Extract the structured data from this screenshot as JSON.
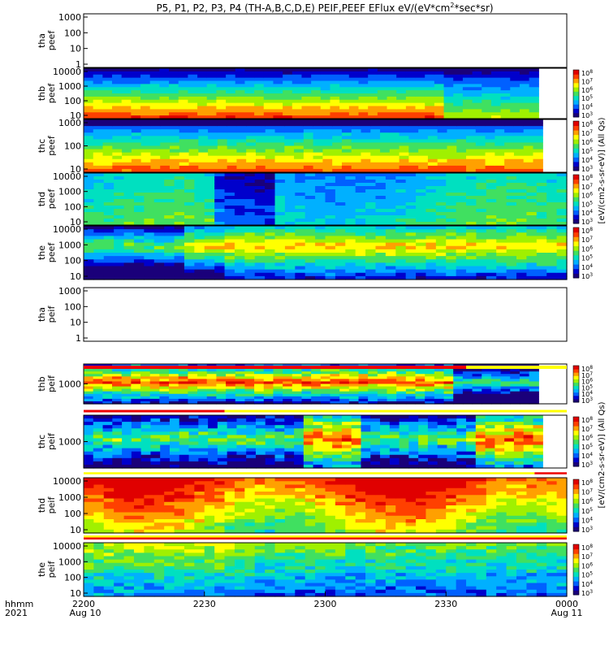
{
  "title": "P5, P1, P2, P3, P4 (TH-A,B,C,D,E) PEIF,PEEF EFlux eV/(eV*cm2*sec*sr)",
  "title_parts": {
    "prefix": "P5, P1, P2, P3, P4 (TH-A,B,C,D,E) PEIF,PEEF EFlux eV/(eV*cm",
    "sup": "2",
    "suffix": "*sec*sr)"
  },
  "footer": {
    "row1_label": "hhmm",
    "row2_label": "2021",
    "x_ticks": [
      "2200",
      "2230",
      "2300",
      "2330",
      "0000"
    ],
    "date_start": "Aug 10",
    "date_end": "Aug 11"
  },
  "colorbar": {
    "eflux_tick_exponents": [
      "3",
      "4",
      "5",
      "6",
      "7",
      "8"
    ],
    "electron_label": "[eV/(cm2-s-sr-eV)] (All Qs)",
    "ion_label": "[eV/(cm2-s-sr-eV)] (All Qs)"
  },
  "colors": {
    "spectrum": [
      "#1a007a",
      "#0000cc",
      "#0060ff",
      "#00b0ff",
      "#00e0c0",
      "#40e060",
      "#a0f000",
      "#ffff00",
      "#ffa000",
      "#ff4000",
      "#e00000"
    ],
    "flag_red": "#ee0000",
    "flag_yellow": "#ffff00"
  },
  "chart_data": {
    "type": "heatmap",
    "x_range": [
      "2021-08-10 22:00",
      "2021-08-11 00:00"
    ],
    "x_ticks": [
      "2200",
      "2230",
      "2300",
      "2330",
      "0000"
    ],
    "colorbar_range": [
      1000,
      100000000
    ],
    "panels": [
      {
        "id": "tha-peef",
        "label_top": "tha",
        "label_bottom": "peef",
        "y_ticks": [
          "1000",
          "100",
          "10",
          "1"
        ],
        "ylim": [
          1,
          20000
        ],
        "has_data": false,
        "flags": []
      },
      {
        "id": "thb-peef",
        "label_top": "thb",
        "label_bottom": "peef",
        "y_ticks": [
          "10000",
          "1000",
          "100",
          "10"
        ],
        "ylim": [
          5,
          25000
        ],
        "has_data": true,
        "data_end_min": 113,
        "flags": []
      },
      {
        "id": "thc-peef",
        "label_top": "thc",
        "label_bottom": "peef",
        "y_ticks": [
          "1000",
          "100",
          "10"
        ],
        "ylim": [
          5,
          6000
        ],
        "has_data": true,
        "data_end_min": 114,
        "flags": []
      },
      {
        "id": "thd-peef",
        "label_top": "thd",
        "label_bottom": "peef",
        "y_ticks": [
          "10000",
          "1000",
          "100",
          "10"
        ],
        "ylim": [
          5,
          25000
        ],
        "has_data": true,
        "data_end_min": 120,
        "flags": []
      },
      {
        "id": "the-peef",
        "label_top": "the",
        "label_bottom": "peef",
        "y_ticks": [
          "10000",
          "1000",
          "100",
          "10"
        ],
        "ylim": [
          5,
          25000
        ],
        "has_data": true,
        "data_end_min": 120,
        "flags": []
      },
      {
        "id": "tha-peif",
        "label_top": "tha",
        "label_bottom": "peif",
        "y_ticks": [
          "1000",
          "100",
          "10",
          "1"
        ],
        "ylim": [
          1,
          20000
        ],
        "has_data": false,
        "flags": []
      },
      {
        "id": "thb-peif",
        "label_top": "thb",
        "label_bottom": "peif",
        "y_ticks": [
          "1000"
        ],
        "ylim": [
          50,
          20000
        ],
        "has_data": true,
        "data_end_min": 113,
        "flags": [
          {
            "color": "red",
            "start_min": 0,
            "end_min": 95
          },
          {
            "color": "yellow",
            "start_min": 95,
            "end_min": 120
          }
        ]
      },
      {
        "id": "thc-peif",
        "label_top": "thc",
        "label_bottom": "peif",
        "y_ticks": [
          "1000"
        ],
        "ylim": [
          50,
          20000
        ],
        "has_data": true,
        "data_end_min": 114,
        "flags": [
          {
            "color": "red",
            "start_min": 0,
            "end_min": 35
          },
          {
            "color": "yellow",
            "start_min": 35,
            "end_min": 120
          }
        ]
      },
      {
        "id": "thd-peif",
        "label_top": "thd",
        "label_bottom": "peif",
        "y_ticks": [
          "10000",
          "1000",
          "100",
          "10"
        ],
        "ylim": [
          5,
          25000
        ],
        "has_data": true,
        "data_end_min": 120,
        "flags": [
          {
            "color": "yellow",
            "start_min": 0,
            "end_min": 112
          },
          {
            "color": "red",
            "start_min": 112,
            "end_min": 120
          }
        ]
      },
      {
        "id": "the-peif",
        "label_top": "the",
        "label_bottom": "peif",
        "y_ticks": [
          "10000",
          "1000",
          "100",
          "10"
        ],
        "ylim": [
          5,
          25000
        ],
        "has_data": true,
        "data_end_min": 120,
        "flags": [
          {
            "color": "yellow",
            "start_min": 0,
            "end_min": 120
          },
          {
            "color": "red",
            "start_min": 0,
            "end_min": 120
          }
        ]
      }
    ]
  }
}
